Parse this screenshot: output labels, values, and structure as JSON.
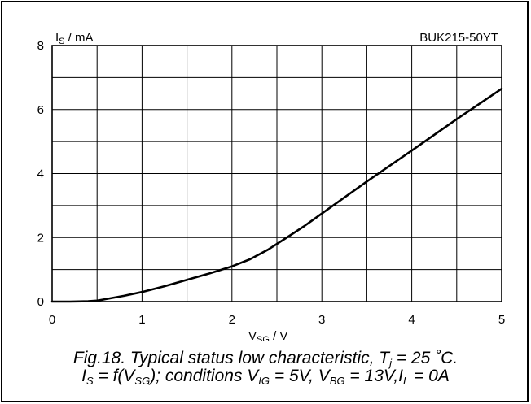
{
  "chart_data": {
    "type": "line",
    "xlabel_main": "V",
    "xlabel_sub": "SG",
    "xlabel_unit": " /  V",
    "ylabel_main": "I",
    "ylabel_sub": "S",
    "ylabel_unit": " /  mA",
    "xlim": [
      0,
      5
    ],
    "ylim": [
      0,
      8
    ],
    "x_ticks": [
      "0",
      "1",
      "2",
      "3",
      "4",
      "5"
    ],
    "y_ticks": [
      "0",
      "2",
      "4",
      "6",
      "8"
    ],
    "annotation": "BUK215-50YT",
    "grid": true,
    "series": [
      {
        "x": [
          0,
          0.2,
          0.4,
          0.5,
          0.6,
          0.8,
          1.0,
          1.25,
          1.5,
          1.75,
          2.0,
          2.2,
          2.4,
          2.6,
          2.8,
          3.0,
          3.5,
          4.0,
          4.5,
          5.0
        ],
        "y": [
          0,
          0,
          0.01,
          0.03,
          0.08,
          0.18,
          0.3,
          0.48,
          0.68,
          0.88,
          1.1,
          1.32,
          1.62,
          1.98,
          2.35,
          2.75,
          3.75,
          4.72,
          5.7,
          6.65
        ]
      }
    ]
  },
  "caption": {
    "line1_a": "Fig.18.   Typical status low characteristic, T",
    "line1_sub": "j",
    "line1_b": " = 25 ˚C.",
    "line2_a": "I",
    "line2_sub1": "S",
    "line2_b": " = f(V",
    "line2_sub2": "SG",
    "line2_c": "); conditions V",
    "line2_sub3": "IG",
    "line2_d": " = 5V,  V",
    "line2_sub4": "BG",
    "line2_e": " = 13V,I",
    "line2_sub5": "L",
    "line2_f": " = 0A"
  }
}
